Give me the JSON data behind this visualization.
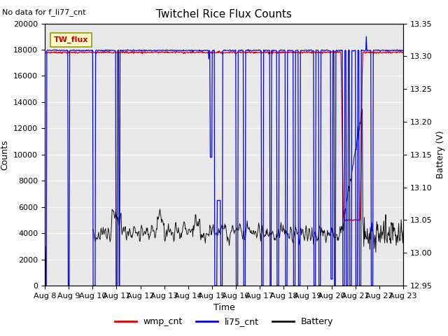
{
  "title": "Twitchel Rice Flux Counts",
  "no_data_text": "No data for f_li77_cnt",
  "tw_flux_label": "TW_flux",
  "xlabel": "Time",
  "ylabel_left": "Counts",
  "ylabel_right": "Battery (V)",
  "ylim_left": [
    0,
    20000
  ],
  "ylim_right": [
    12.95,
    13.35
  ],
  "yticks_left": [
    0,
    2000,
    4000,
    6000,
    8000,
    10000,
    12000,
    14000,
    16000,
    18000,
    20000
  ],
  "yticks_right": [
    12.95,
    13.0,
    13.05,
    13.1,
    13.15,
    13.2,
    13.25,
    13.3,
    13.35
  ],
  "xtick_labels": [
    "Aug 8",
    "Aug 9",
    "Aug 10",
    "Aug 11",
    "Aug 12",
    "Aug 13",
    "Aug 14",
    "Aug 15",
    "Aug 16",
    "Aug 17",
    "Aug 18",
    "Aug 19",
    "Aug 20",
    "Aug 21",
    "Aug 22",
    "Aug 23"
  ],
  "bg_color": "#e8e8e8",
  "wmp_color": "#dd0000",
  "li75_color": "#0000ee",
  "battery_color": "#111111",
  "legend_labels": [
    "wmp_cnt",
    "li75_cnt",
    "Battery"
  ],
  "legend_colors": [
    "#dd0000",
    "#0000ee",
    "#111111"
  ],
  "wmp_base": 17800,
  "li75_base": 17950,
  "batt_base": 13.03,
  "batt_range_min": 12.95,
  "batt_range_max": 13.35,
  "counts_max": 20000
}
